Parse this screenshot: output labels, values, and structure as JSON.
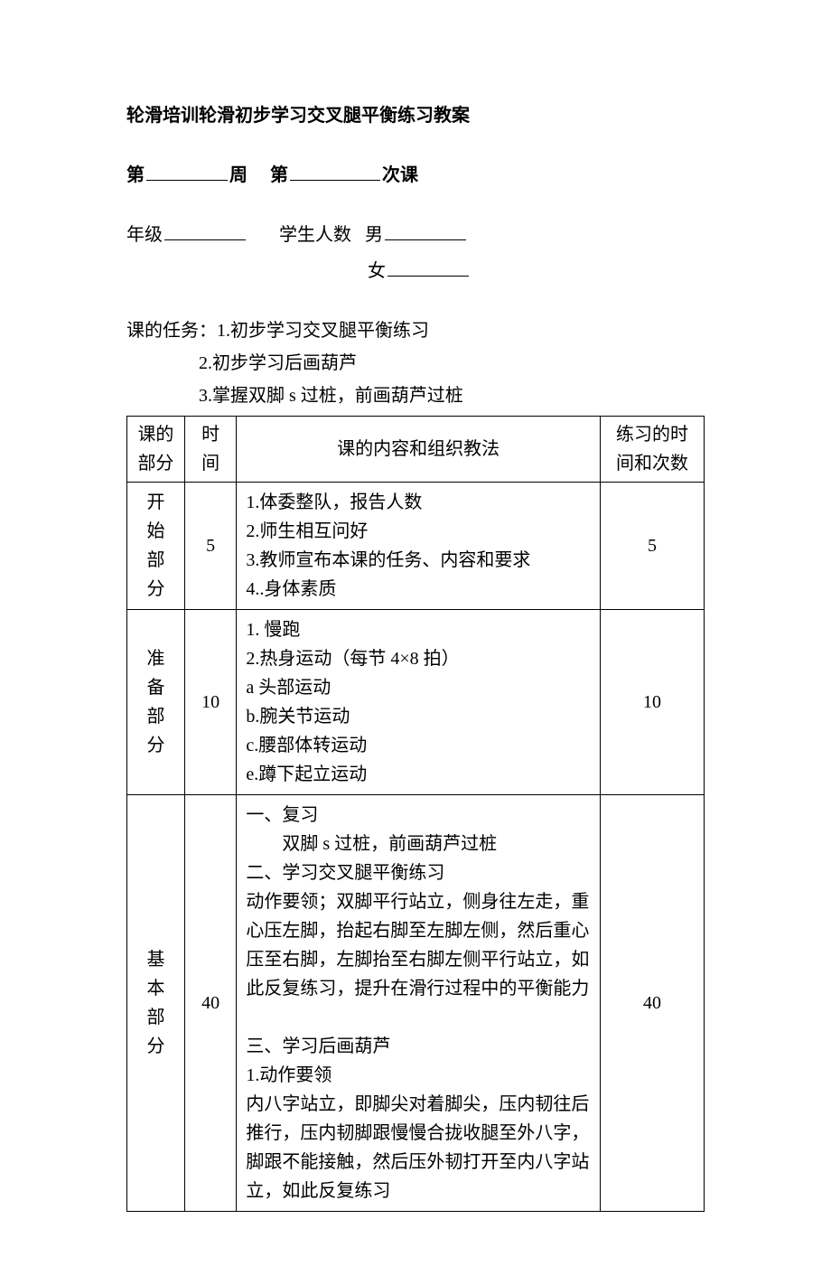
{
  "title": "轮滑培训轮滑初步学习交叉腿平衡练习教案",
  "header": {
    "week_prefix": "第",
    "week_suffix": "周",
    "session_prefix": "第",
    "session_suffix": "次课",
    "grade_label": "年级",
    "student_count_label": "学生人数",
    "male_label": "男",
    "female_label": "女"
  },
  "tasks": {
    "prefix": "课的任务：",
    "items": [
      "1.初步学习交叉腿平衡练习",
      "2.初步学习后画葫芦",
      "3.掌握双脚 s 过桩，前画葫芦过桩"
    ]
  },
  "table": {
    "columns": {
      "part_l1": "课的",
      "part_l2": "部分",
      "time_l1": "时",
      "time_l2": "间",
      "content": "课的内容和组织教法",
      "practice_l1": "练习的时",
      "practice_l2": "间和次数"
    },
    "rows": [
      {
        "part": [
          "开",
          "始",
          "部",
          "分"
        ],
        "time": "5",
        "content_lines": [
          "1.体委整队，报告人数",
          "2.师生相互问好",
          "3.教师宣布本课的任务、内容和要求",
          "4..身体素质"
        ],
        "practice": "5"
      },
      {
        "part": [
          "准",
          "备",
          "部",
          "分"
        ],
        "time": "10",
        "content_lines": [
          "1. 慢跑",
          "2.热身运动（每节 4×8 拍）",
          "a 头部运动",
          "b.腕关节运动",
          "c.腰部体转运动",
          "e.蹲下起立运动"
        ],
        "practice": "10"
      },
      {
        "part": [
          "基",
          "本",
          "部",
          "分"
        ],
        "time": "40",
        "content_lines": [
          "一、复习",
          {
            "text": "双脚 s 过桩，前画葫芦过桩",
            "indent": true
          },
          "二、学习交叉腿平衡练习",
          "动作要领；双脚平行站立，侧身往左走，重心压左脚，抬起右脚至左脚左侧，然后重心压至右脚，左脚抬至右脚左侧平行站立，如此反复练习，提升在滑行过程中的平衡能力",
          "",
          "三、学习后画葫芦",
          "1.动作要领",
          "内八字站立，即脚尖对着脚尖，压内韧往后推行，压内韧脚跟慢慢合拢收腿至外八字，脚跟不能接触，然后压外韧打开至内八字站立，如此反复练习"
        ],
        "practice": "40"
      }
    ],
    "col_widths": {
      "part": "10%",
      "time": "9%",
      "content": "63%",
      "practice": "18%"
    }
  }
}
